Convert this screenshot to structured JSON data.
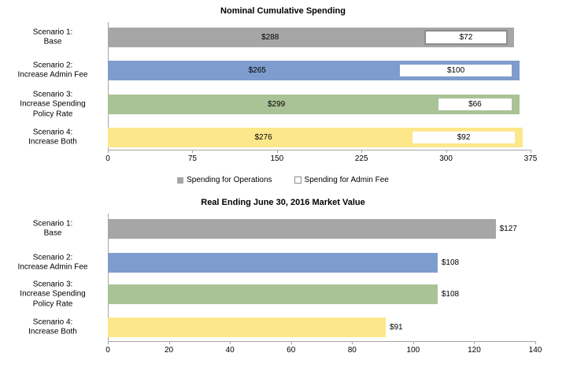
{
  "page": {
    "background": "#FFFFFF",
    "text_color": "#000000",
    "axis_color": "#A6A6A6"
  },
  "chart_data": [
    {
      "type": "bar",
      "orientation": "horizontal",
      "stacked": true,
      "title": "Nominal Cumulative Spending",
      "categories": [
        [
          "Scenario 1:",
          "Base"
        ],
        [
          "Scenario 2:",
          "Increase Admin Fee"
        ],
        [
          "Scenario 3:",
          "Increase Spending",
          "Policy Rate"
        ],
        [
          "Scenario 4:",
          "Increase Both"
        ]
      ],
      "series": [
        {
          "name": "Spending for Operations",
          "values": [
            288,
            265,
            299,
            276
          ],
          "labels": [
            "$288",
            "$265",
            "$299",
            "$276"
          ],
          "style": "solid-fill"
        },
        {
          "name": "Spending for Admin Fee",
          "values": [
            72,
            100,
            66,
            92
          ],
          "labels": [
            "$72",
            "$100",
            "$66",
            "$92"
          ],
          "style": "white-fill-outlined"
        }
      ],
      "totals": [
        360,
        365,
        365,
        368
      ],
      "bar_colors": [
        "#A6A6A6",
        "#7E9CCD",
        "#A9C296",
        "#FDE78B"
      ],
      "admin_box_border_colors": [
        "#8C8C8C",
        "#7E9CCD",
        "#A9C296",
        "#FDE78B"
      ],
      "xlim": [
        0,
        375
      ],
      "xticks": [
        "0",
        "75",
        "150",
        "225",
        "300",
        "375"
      ],
      "grid": false,
      "legend_position": "bottom",
      "legend": [
        {
          "label": "Spending for Operations",
          "swatch": "gray-filled-square"
        },
        {
          "label": "Spending for Admin Fee",
          "swatch": "white-outlined-square"
        }
      ]
    },
    {
      "type": "bar",
      "orientation": "horizontal",
      "stacked": false,
      "title": "Real Ending June 30, 2016 Market Value",
      "categories": [
        [
          "Scenario 1:",
          "Base"
        ],
        [
          "Scenario 2:",
          "Increase Admin Fee"
        ],
        [
          "Scenario 3:",
          "Increase Spending",
          "Policy Rate"
        ],
        [
          "Scenario 4:",
          "Increase Both"
        ]
      ],
      "values": [
        127,
        108,
        108,
        91
      ],
      "value_labels": [
        "$127",
        "$108",
        "$108",
        "$91"
      ],
      "bar_colors": [
        "#A6A6A6",
        "#7E9CCD",
        "#A9C296",
        "#FDE78B"
      ],
      "xlim": [
        0,
        140
      ],
      "xticks": [
        "0",
        "20",
        "40",
        "60",
        "80",
        "100",
        "120",
        "140"
      ],
      "grid": false,
      "legend_position": "none"
    }
  ]
}
